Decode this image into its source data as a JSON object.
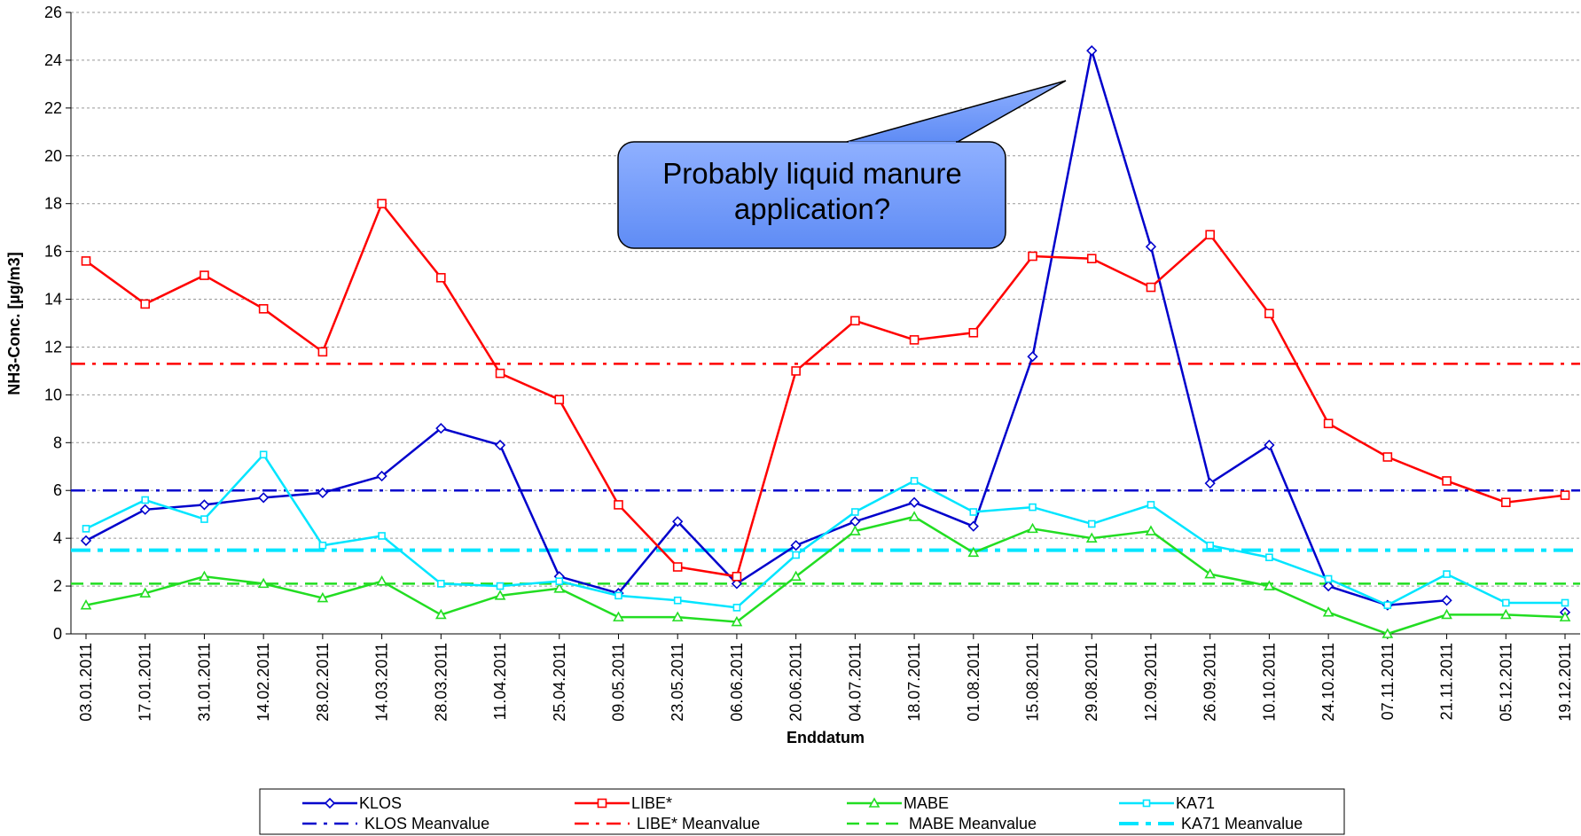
{
  "chart_data": {
    "type": "line",
    "annotation": "Probably liquid manure application?",
    "x_label": "Enddatum",
    "y_label": "NH3-Conc. [µg/m3]",
    "categories": [
      "03.01.2011",
      "17.01.2011",
      "31.01.2011",
      "14.02.2011",
      "28.02.2011",
      "14.03.2011",
      "28.03.2011",
      "11.04.2011",
      "25.04.2011",
      "09.05.2011",
      "23.05.2011",
      "06.06.2011",
      "20.06.2011",
      "04.07.2011",
      "18.07.2011",
      "01.08.2011",
      "15.08.2011",
      "29.08.2011",
      "12.09.2011",
      "26.09.2011",
      "10.10.2011",
      "24.10.2011",
      "07.11.2011",
      "21.11.2011",
      "05.12.2011",
      "19.12.2011"
    ],
    "series": [
      {
        "name": "KLOS",
        "color": "#0000cc",
        "marker": "diamond",
        "values": [
          3.9,
          5.2,
          5.4,
          5.7,
          5.9,
          6.6,
          8.6,
          7.9,
          2.4,
          1.7,
          4.7,
          2.1,
          3.7,
          4.7,
          5.5,
          4.5,
          11.6,
          24.4,
          16.2,
          6.3,
          7.9,
          2.0,
          1.2,
          1.4,
          null,
          0.9
        ]
      },
      {
        "name": "LIBE*",
        "color": "#ff0000",
        "marker": "square",
        "values": [
          15.6,
          13.8,
          15.0,
          13.6,
          11.8,
          18.0,
          14.9,
          10.9,
          9.8,
          5.4,
          2.8,
          2.4,
          11.0,
          13.1,
          12.3,
          12.6,
          15.8,
          15.7,
          14.5,
          16.7,
          13.4,
          8.8,
          7.4,
          6.4,
          5.5,
          5.8
        ]
      },
      {
        "name": "MABE",
        "color": "#22dd22",
        "marker": "triangle",
        "values": [
          1.2,
          1.7,
          2.4,
          2.1,
          1.5,
          2.2,
          0.8,
          1.6,
          1.9,
          0.7,
          0.7,
          0.5,
          2.4,
          4.3,
          4.9,
          3.4,
          4.4,
          4.0,
          4.3,
          2.5,
          2.0,
          0.9,
          0.0,
          0.8,
          0.8,
          0.7
        ]
      },
      {
        "name": "KA71",
        "color": "#00e5ff",
        "marker": "small-square",
        "values": [
          4.4,
          5.6,
          4.8,
          7.5,
          3.7,
          4.1,
          2.1,
          2.0,
          2.2,
          1.6,
          1.4,
          1.1,
          3.3,
          5.1,
          6.4,
          5.1,
          5.3,
          4.6,
          5.4,
          3.7,
          3.2,
          2.3,
          1.2,
          2.5,
          1.3,
          1.3
        ]
      }
    ],
    "mean_lines": [
      {
        "name": "KLOS Meanvalue",
        "color": "#0000cc",
        "dash": "dash-dot",
        "value": 6.0
      },
      {
        "name": "LIBE* Meanvalue",
        "color": "#ff0000",
        "dash": "dash-dot",
        "value": 11.3
      },
      {
        "name": "MABE Meanvalue",
        "color": "#22dd22",
        "dash": "dash",
        "value": 2.1
      },
      {
        "name": "KA71 Meanvalue",
        "color": "#00e5ff",
        "dash": "dash-dot-thick",
        "value": 3.5
      }
    ],
    "ylim": [
      0,
      26
    ],
    "yticks": [
      0,
      2,
      4,
      6,
      8,
      10,
      12,
      14,
      16,
      18,
      20,
      22,
      24,
      26
    ],
    "grid": true
  }
}
